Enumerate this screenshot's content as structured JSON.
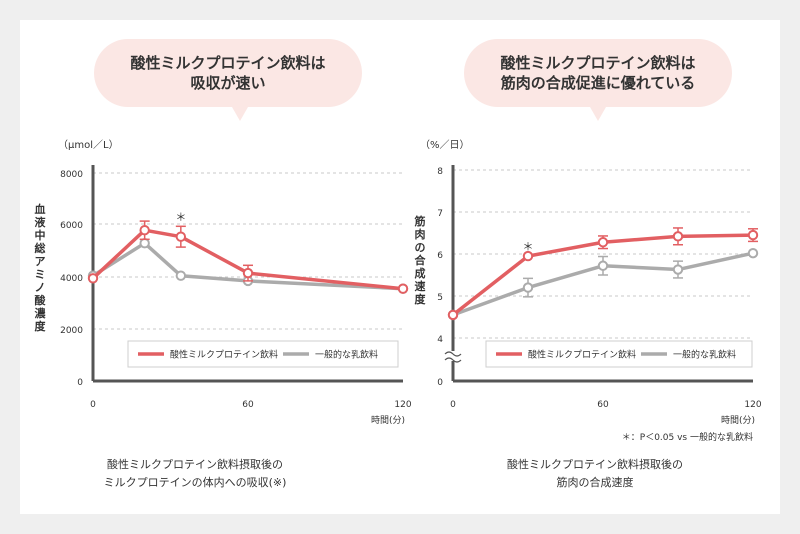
{
  "colors": {
    "primary": "#e25f62",
    "secondary": "#ababab",
    "bubble": "#fbe7e4",
    "axis": "#555555",
    "grid": "#c9c9c9",
    "text": "#333333"
  },
  "chart_data": [
    {
      "type": "line",
      "bubble_lines": [
        "酸性ミルクプロテイン飲料は",
        "吸収が速い"
      ],
      "unit": "（μmol／L）",
      "ylabel": "血液中総アミノ酸濃度",
      "xlabel": "時間(分)",
      "x_ticks": [
        "0",
        "60",
        "120"
      ],
      "y_ticks": [
        "0",
        "2000",
        "4000",
        "6000",
        "8000"
      ],
      "xlim": [
        0,
        120
      ],
      "ylim": [
        0,
        8000
      ],
      "grid": true,
      "legend_position": "bottom-right",
      "series": [
        {
          "name": "酸性ミルクプロテイン飲料",
          "x": [
            0,
            20,
            34,
            60,
            120
          ],
          "y": [
            3950,
            5800,
            5550,
            4150,
            3550
          ],
          "err": [
            0,
            350,
            400,
            300,
            0
          ],
          "markers": [
            "",
            "",
            "＊",
            "",
            ""
          ]
        },
        {
          "name": "一般的な乳飲料",
          "x": [
            0,
            20,
            34,
            60,
            120
          ],
          "y": [
            4050,
            5300,
            4050,
            3850,
            3550
          ],
          "err": [
            0,
            0,
            0,
            0,
            0
          ],
          "markers": [
            "",
            "",
            "",
            "",
            ""
          ]
        }
      ],
      "caption_lines": [
        "酸性ミルクプロテイン飲料摂取後の",
        "ミルクプロテインの体内への吸収(※)"
      ],
      "footnote": ""
    },
    {
      "type": "line",
      "bubble_lines": [
        "酸性ミルクプロテイン飲料は",
        "筋肉の合成促進に優れている"
      ],
      "unit": "（%／日）",
      "ylabel": "筋肉の合成速度",
      "xlabel": "時間(分)",
      "x_ticks": [
        "0",
        "60",
        "120"
      ],
      "y_ticks": [
        "0",
        "4",
        "5",
        "6",
        "7",
        "8"
      ],
      "xlim": [
        0,
        120
      ],
      "ylim": [
        0,
        8
      ],
      "axis_break": true,
      "grid": true,
      "legend_position": "bottom-right",
      "series": [
        {
          "name": "酸性ミルクプロテイン飲料",
          "x": [
            0,
            30,
            60,
            90,
            120
          ],
          "y": [
            4.55,
            5.95,
            6.28,
            6.42,
            6.45
          ],
          "err": [
            0,
            0,
            0.15,
            0.2,
            0.15
          ],
          "markers": [
            "",
            "＊",
            "",
            "",
            ""
          ]
        },
        {
          "name": "一般的な乳飲料",
          "x": [
            0,
            30,
            60,
            90,
            120
          ],
          "y": [
            4.55,
            5.2,
            5.72,
            5.63,
            6.02
          ],
          "err": [
            0,
            0.22,
            0.22,
            0.2,
            0
          ],
          "markers": [
            "",
            "",
            "",
            "",
            ""
          ]
        }
      ],
      "caption_lines": [
        "酸性ミルクプロテイン飲料摂取後の",
        "筋肉の合成速度"
      ],
      "footnote": "＊：P＜0.05 vs 一般的な乳飲料"
    }
  ]
}
